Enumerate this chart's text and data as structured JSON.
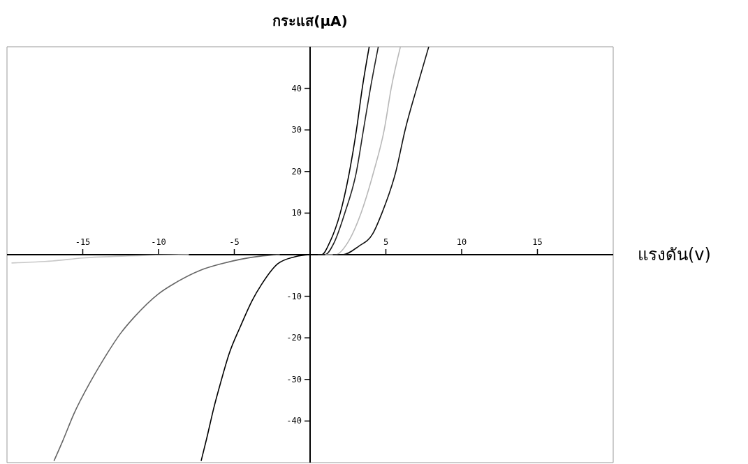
{
  "chart_data": {
    "type": "line",
    "xlabel": "แรงดัน(v)",
    "ylabel": "กระแส(μA)",
    "xlim": [
      -20,
      20
    ],
    "ylim": [
      -50,
      50
    ],
    "xticks": [
      -15,
      -10,
      -5,
      5,
      10,
      15
    ],
    "yticks": [
      -40,
      -30,
      -20,
      -10,
      10,
      20,
      30,
      40
    ],
    "marker": "none",
    "line_style": "solid",
    "series": [
      {
        "color": "#000000",
        "x": [
          0.3,
          0.77,
          1.3,
          1.99,
          2.6,
          3.06,
          3.44,
          3.9
        ],
        "values": [
          0,
          0,
          3,
          10,
          20,
          30,
          40,
          50
        ]
      },
      {
        "color": "#222222",
        "x": [
          0.5,
          0.99,
          1.6,
          2.29,
          3.06,
          3.52,
          3.98,
          4.5
        ],
        "values": [
          0,
          0,
          3,
          10,
          20,
          30,
          40,
          50
        ]
      },
      {
        "color": "#b8b8b8",
        "x": [
          1.0,
          1.68,
          2.5,
          3.36,
          4.2,
          4.89,
          5.35,
          5.96
        ],
        "values": [
          0,
          0,
          3,
          10,
          20,
          30,
          40,
          50
        ]
      },
      {
        "color": "#111111",
        "x": [
          1.5,
          2.14,
          3.2,
          4.13,
          4.74,
          5.66,
          6.27,
          7.03,
          7.83
        ],
        "values": [
          0,
          0,
          2,
          5,
          10,
          20,
          30,
          40,
          50
        ]
      },
      {
        "color": "#000000",
        "x": [
          0,
          -1,
          -2.14,
          -3.21,
          -3.82,
          -4.59,
          -5.35,
          -5.89,
          -6.35,
          -6.81,
          -7.19
        ],
        "values": [
          0,
          -0.5,
          -2.2,
          -7.2,
          -11,
          -17.2,
          -23.9,
          -30.6,
          -36.8,
          -44,
          -49.6
        ]
      },
      {
        "color": "#666666",
        "x": [
          -2,
          -3.37,
          -5.76,
          -7.28,
          -8.81,
          -10,
          -11.6,
          -12.5,
          -13.7,
          -14.5,
          -15.6,
          -16.3,
          -16.9
        ],
        "values": [
          0,
          -0.4,
          -2.1,
          -3.8,
          -6.6,
          -9.4,
          -15,
          -18.9,
          -25.6,
          -30.6,
          -38.4,
          -44.6,
          -49.6
        ]
      },
      {
        "color": "#c8c8c8",
        "x": [
          -8,
          -12,
          -15,
          -17,
          -19.7
        ],
        "values": [
          0,
          -0.3,
          -0.8,
          -1.5,
          -2
        ]
      }
    ]
  }
}
